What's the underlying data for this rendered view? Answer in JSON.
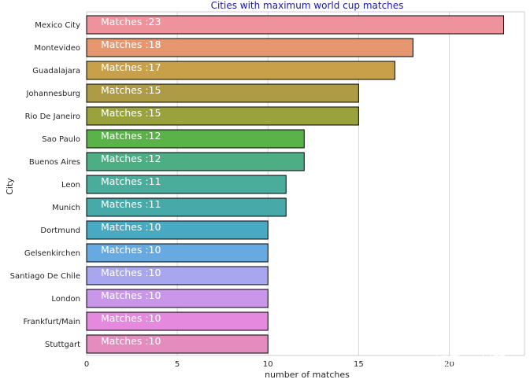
{
  "chart_data": {
    "type": "bar",
    "orientation": "horizontal",
    "title": "Cities with maximum world cup matches",
    "xlabel": "number of matches",
    "ylabel": "City",
    "categories": [
      "Mexico City",
      "Montevideo",
      "Guadalajara",
      "Johannesburg",
      "Rio De Janeiro",
      "Sao Paulo",
      "Buenos Aires",
      "Leon",
      "Munich",
      "Dortmund",
      "Gelsenkirchen",
      "Santiago De Chile",
      "London",
      "Frankfurt/Main",
      "Stuttgart"
    ],
    "values": [
      23,
      18,
      17,
      15,
      15,
      12,
      12,
      11,
      11,
      10,
      10,
      10,
      10,
      10,
      10
    ],
    "data_labels": [
      "Matches  :23",
      "Matches  :18",
      "Matches  :17",
      "Matches  :15",
      "Matches  :15",
      "Matches  :12",
      "Matches  :12",
      "Matches  :11",
      "Matches  :11",
      "Matches  :10",
      "Matches  :10",
      "Matches  :10",
      "Matches  :10",
      "Matches  :10",
      "Matches  :10"
    ],
    "colors": [
      "#ee939b",
      "#e6976f",
      "#c8a04a",
      "#ad9c45",
      "#9aa23e",
      "#59b348",
      "#4dae86",
      "#4aad9c",
      "#47a9a8",
      "#47a9c2",
      "#66aae1",
      "#a8a6ee",
      "#c996e9",
      "#e589df",
      "#e58cbe"
    ],
    "xlim": [
      0,
      24.15
    ],
    "xticks": [
      0,
      5,
      10,
      15,
      20
    ],
    "grid": true,
    "bar_edge_color": "#000000",
    "title_color": "#1a1aa6"
  },
  "watermark": "知乎 @刘明"
}
